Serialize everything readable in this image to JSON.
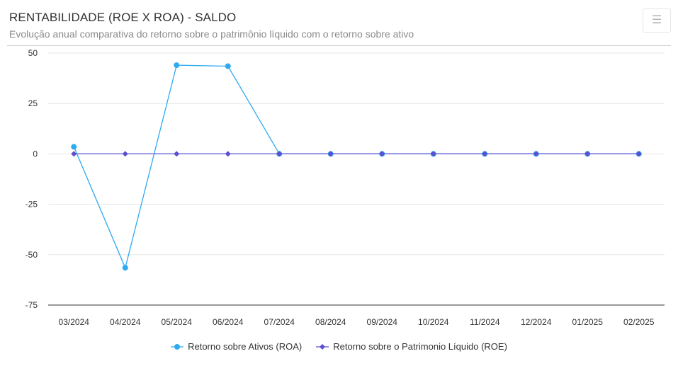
{
  "header": {
    "title": "RENTABILIDADE (ROE X ROA) - SALDO",
    "subtitle": "Evolução anual comparativa do retorno sobre o patrimônio líquido com o retorno sobre ativo",
    "menu_icon": "hamburger-menu-icon"
  },
  "chart_data": {
    "type": "line",
    "title": "RENTABILIDADE (ROE X ROA) - SALDO",
    "subtitle": "Evolução anual comparativa do retorno sobre o patrimônio líquido com o retorno sobre ativo",
    "categories": [
      "03/2024",
      "04/2024",
      "05/2024",
      "06/2024",
      "07/2024",
      "08/2024",
      "09/2024",
      "10/2024",
      "11/2024",
      "12/2024",
      "01/2025",
      "02/2025"
    ],
    "ylim": [
      -75,
      50
    ],
    "yticks": [
      "50",
      "25",
      "0",
      "-25",
      "-50",
      "-75"
    ],
    "grid": true,
    "legend_position": "bottom-center",
    "series": [
      {
        "name": "Retorno sobre Ativos (ROA)",
        "color": "#2eaaf0",
        "marker": "circle",
        "values": [
          3.5,
          -56.5,
          44,
          43.5,
          0,
          0,
          0,
          0,
          0,
          0,
          0,
          0
        ]
      },
      {
        "name": "Retorno sobre o Patrimonio Líquido (ROE)",
        "color": "#5a4fcf",
        "marker": "diamond",
        "values": [
          0,
          0,
          0,
          0,
          0,
          0,
          0,
          0,
          0,
          0,
          0,
          0
        ]
      }
    ]
  }
}
